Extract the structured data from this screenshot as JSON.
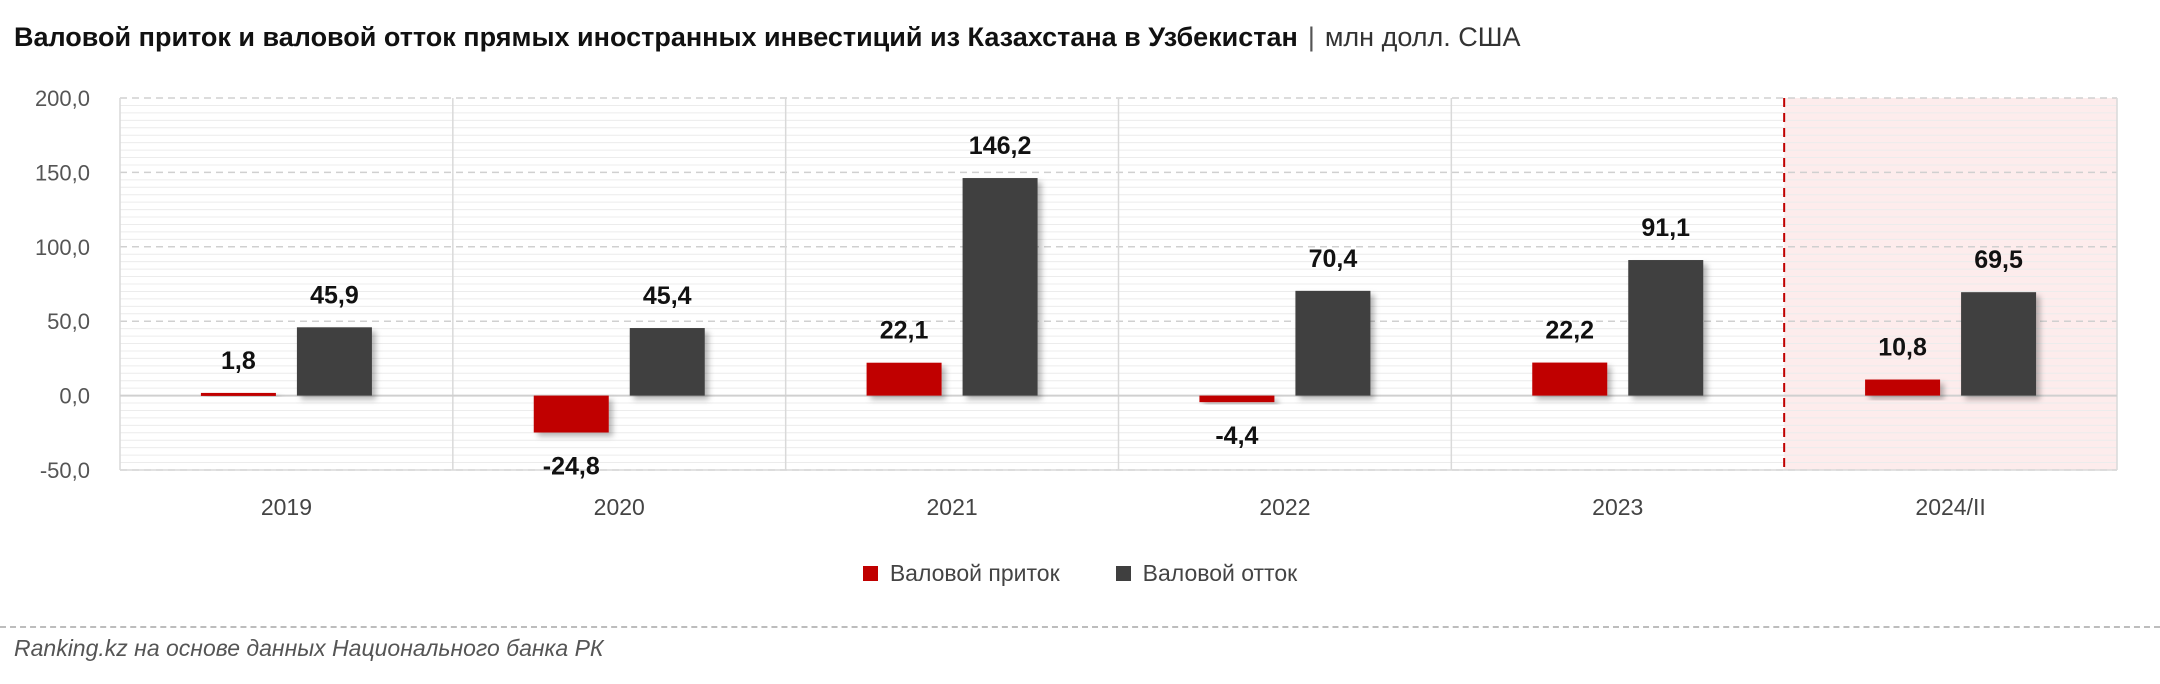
{
  "title": {
    "main": "Валовой приток и валовой отток прямых иностранных инвестиций из Казахстана в Узбекистан",
    "separator": "|",
    "unit": "млн долл. США"
  },
  "source": "Ranking.kz на основе данных Национального банка РК",
  "colors": {
    "inflow": "#c00000",
    "outflow": "#3f3f3f",
    "highlight_bg": "#fdecec",
    "highlight_line": "#c00000"
  },
  "chart_data": {
    "type": "bar",
    "categories": [
      "2019",
      "2020",
      "2021",
      "2022",
      "2023",
      "2024/II"
    ],
    "series": [
      {
        "name": "Валовой приток",
        "values": [
          1.8,
          -24.8,
          22.1,
          -4.4,
          22.2,
          10.8
        ],
        "labels": [
          "1,8",
          "-24,8",
          "22,1",
          "-4,4",
          "22,2",
          "10,8"
        ]
      },
      {
        "name": "Валовой отток",
        "values": [
          45.9,
          45.4,
          146.2,
          70.4,
          91.1,
          69.5
        ],
        "labels": [
          "45,9",
          "45,4",
          "146,2",
          "70,4",
          "91,1",
          "69,5"
        ]
      }
    ],
    "ylim": [
      -50,
      200
    ],
    "yticks": [
      -50,
      0,
      50,
      100,
      150,
      200
    ],
    "ytick_labels": [
      "-50,0",
      "0,0",
      "50,0",
      "100,0",
      "150,0",
      "200,0"
    ],
    "grid": true,
    "highlighted_category": "2024/II",
    "legend_position": "bottom-center"
  }
}
